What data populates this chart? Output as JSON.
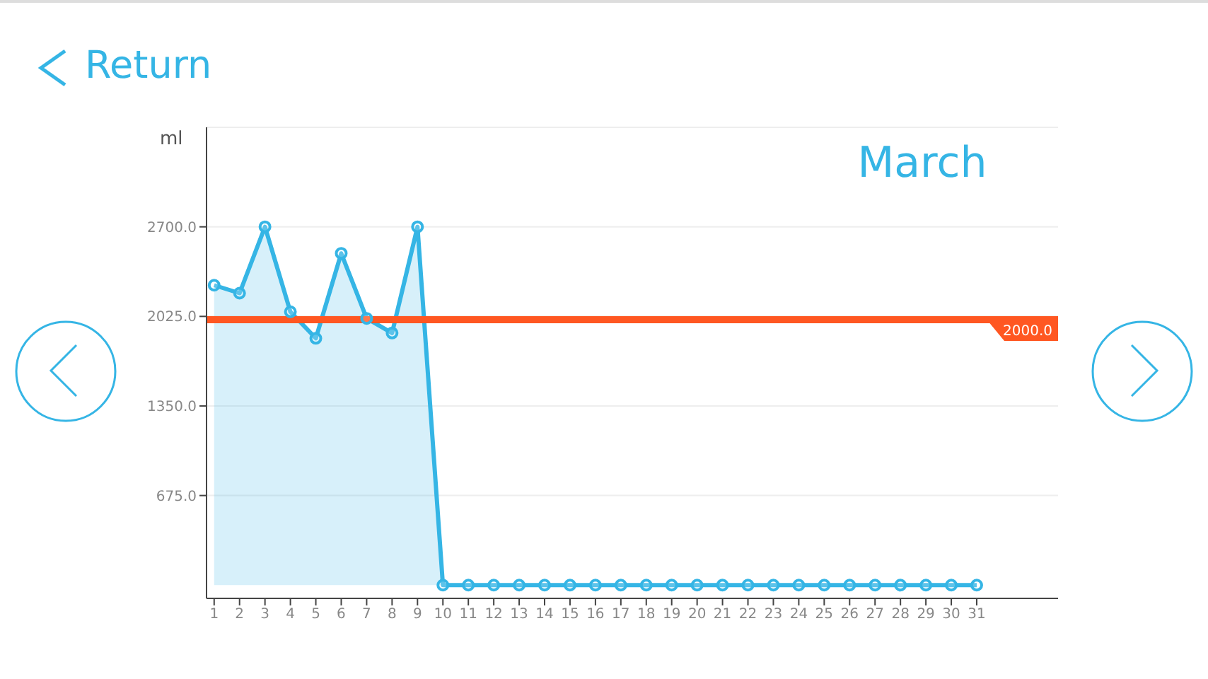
{
  "chart_data": {
    "type": "area",
    "title": "March",
    "ylabel": "ml",
    "annotations": [
      "Return"
    ],
    "x": [
      1,
      2,
      3,
      4,
      5,
      6,
      7,
      8,
      9,
      10,
      11,
      12,
      13,
      14,
      15,
      16,
      17,
      18,
      19,
      20,
      21,
      22,
      23,
      24,
      25,
      26,
      27,
      28,
      29,
      30,
      31
    ],
    "series": [
      {
        "color": "#35b5e5",
        "values": [
          2260,
          2200,
          2700,
          2060,
          1860,
          2500,
          2010,
          1900,
          2700,
          0,
          0,
          0,
          0,
          0,
          0,
          0,
          0,
          0,
          0,
          0,
          0,
          0,
          0,
          0,
          0,
          0,
          0,
          0,
          0,
          0,
          0
        ]
      }
    ],
    "xlim": [
      0.7,
      34.2
    ],
    "xticks": [
      1,
      2,
      3,
      4,
      5,
      6,
      7,
      8,
      9,
      10,
      11,
      12,
      13,
      14,
      15,
      16,
      17,
      18,
      19,
      20,
      21,
      22,
      23,
      24,
      25,
      26,
      27,
      28,
      29,
      30,
      31
    ],
    "ylim": [
      -100,
      3450
    ],
    "yticks": [
      {
        "value": 675,
        "label": "675.0"
      },
      {
        "value": 1350,
        "label": "1350.0"
      },
      {
        "value": 2025,
        "label": "2025.0"
      },
      {
        "value": 2700,
        "label": "2700.0"
      }
    ],
    "ref_lines": [
      {
        "axis": "y",
        "value": 2000,
        "label": "2000.0",
        "color": "#ff5722"
      }
    ],
    "grid": "y",
    "marker": "circle"
  }
}
